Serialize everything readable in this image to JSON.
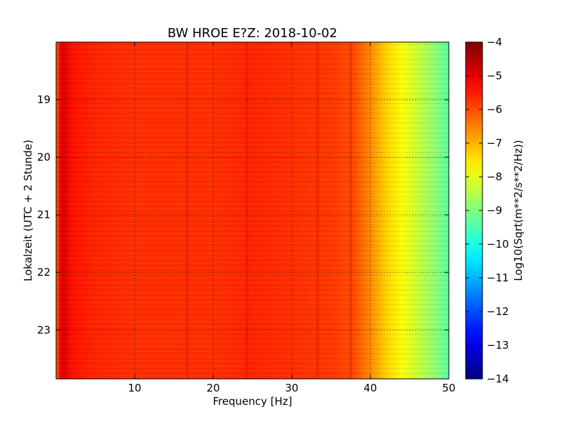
{
  "chart_data": {
    "type": "heatmap",
    "title": "BW HROE E?Z: 2018-10-02",
    "xlabel": "Frequency [Hz]",
    "ylabel": "Lokalzeit (UTC + 2 Stunde)",
    "xlim": [
      0,
      50
    ],
    "ylim": [
      18.0,
      23.85
    ],
    "x_ticks": [
      10,
      20,
      30,
      40,
      50
    ],
    "y_ticks": [
      19,
      20,
      21,
      22,
      23
    ],
    "grid": true,
    "colorbar": {
      "label": "Log10(Sqrt(m**2/s**2/Hz))",
      "range": [
        -14,
        -4
      ],
      "ticks": [
        -4,
        -5,
        -6,
        -7,
        -8,
        -9,
        -10,
        -11,
        -12,
        -13,
        -14
      ],
      "colormap": "jet"
    },
    "spectrum_profile": {
      "frequency_hz": [
        0.0,
        0.6,
        1.0,
        2,
        5,
        10,
        15,
        20,
        25,
        30,
        35,
        38,
        40,
        42,
        44,
        46,
        48,
        50
      ],
      "log10_amplitude": [
        -6.2,
        -5.0,
        -4.9,
        -5.4,
        -5.6,
        -5.7,
        -5.7,
        -5.7,
        -5.6,
        -5.7,
        -5.8,
        -6.0,
        -6.6,
        -7.3,
        -7.8,
        -8.3,
        -8.8,
        -9.4
      ]
    },
    "highlighted_bands_hz": [
      16.7,
      24.3,
      33.3,
      37.5
    ]
  }
}
